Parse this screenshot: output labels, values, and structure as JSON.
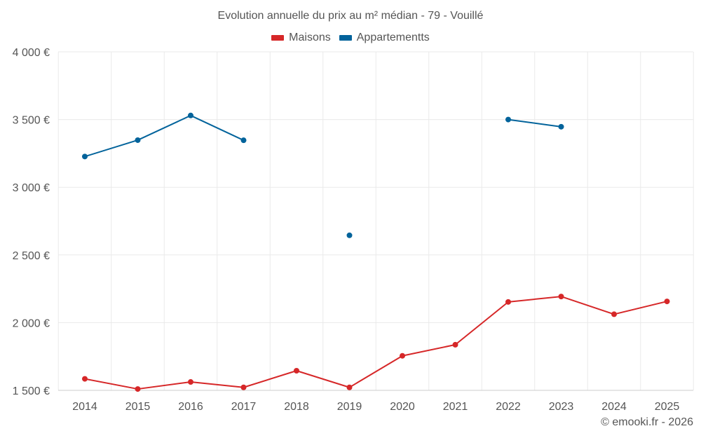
{
  "chart_data": {
    "type": "line",
    "title": "Evolution annuelle du prix au m² médian - 79 - Vouillé",
    "xlabel": "",
    "ylabel": "",
    "categories": [
      "2014",
      "2015",
      "2016",
      "2017",
      "2018",
      "2019",
      "2020",
      "2021",
      "2022",
      "2023",
      "2024",
      "2025"
    ],
    "ylim": [
      1500,
      4000
    ],
    "y_ticks": [
      1500,
      2000,
      2500,
      3000,
      3500,
      4000
    ],
    "y_tick_labels": [
      "1 500 €",
      "2 000 €",
      "2 500 €",
      "3 000 €",
      "3 500 €",
      "4 000 €"
    ],
    "grid": true,
    "legend_position": "top-center",
    "series": [
      {
        "name": "Maisons",
        "color": "#d62728",
        "values": [
          1585,
          1510,
          1562,
          1522,
          1645,
          1522,
          1755,
          1837,
          2153,
          2193,
          2062,
          2157
        ]
      },
      {
        "name": "Appartementts",
        "color": "#02639b",
        "values": [
          3227,
          3348,
          3530,
          3347,
          null,
          2645,
          null,
          null,
          3500,
          3447,
          null,
          null
        ]
      }
    ]
  },
  "copyright": "© emooki.fr - 2026"
}
